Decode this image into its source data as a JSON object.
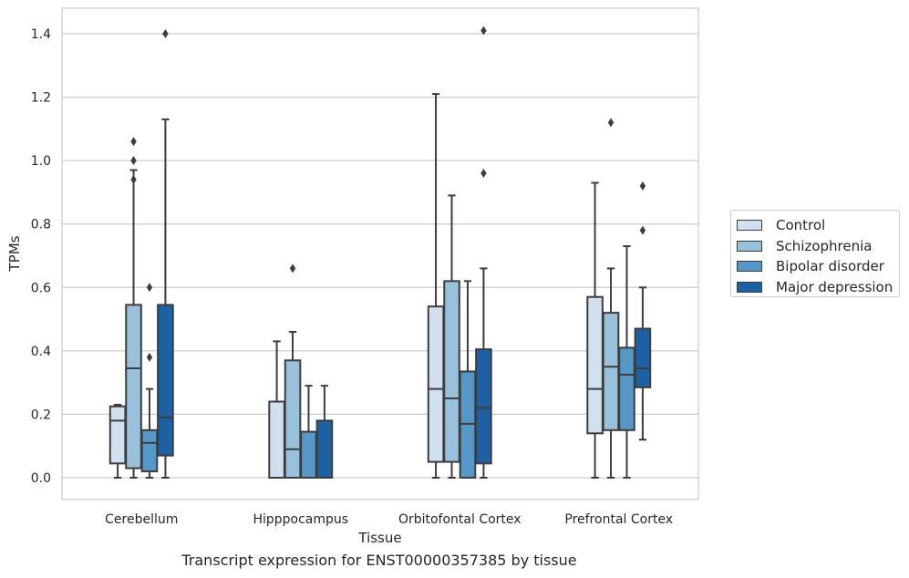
{
  "caption": "Transcript expression for ENST00000357385 by tissue",
  "chart_data": {
    "type": "boxplot",
    "xlabel": "Tissue",
    "ylabel": "TPMs",
    "ylim": [
      -0.07,
      1.48
    ],
    "yticks": [
      "0.0",
      "0.2",
      "0.4",
      "0.6",
      "0.8",
      "1.0",
      "1.2",
      "1.4"
    ],
    "grid": "horizontal",
    "legend_position": "right",
    "categories": [
      "Cerebellum",
      "Hipppocampus",
      "Orbitofontal Cortex",
      "Prefrontal Cortex"
    ],
    "series": [
      {
        "name": "Control",
        "color": "#d0e0ef",
        "boxes": [
          {
            "whisker_low": 0.0,
            "q1": 0.045,
            "median": 0.18,
            "q3": 0.225,
            "whisker_high": 0.23,
            "outliers": []
          },
          {
            "whisker_low": 0.0,
            "q1": 0.0,
            "median": 0.0,
            "q3": 0.24,
            "whisker_high": 0.43,
            "outliers": []
          },
          {
            "whisker_low": 0.0,
            "q1": 0.05,
            "median": 0.28,
            "q3": 0.54,
            "whisker_high": 1.21,
            "outliers": []
          },
          {
            "whisker_low": 0.0,
            "q1": 0.14,
            "median": 0.28,
            "q3": 0.57,
            "whisker_high": 0.93,
            "outliers": []
          }
        ]
      },
      {
        "name": "Schizophrenia",
        "color": "#99c1dc",
        "boxes": [
          {
            "whisker_low": 0.0,
            "q1": 0.03,
            "median": 0.345,
            "q3": 0.545,
            "whisker_high": 0.97,
            "outliers": [
              0.94,
              1.0,
              1.06
            ]
          },
          {
            "whisker_low": 0.0,
            "q1": 0.0,
            "median": 0.09,
            "q3": 0.37,
            "whisker_high": 0.46,
            "outliers": [
              0.66
            ]
          },
          {
            "whisker_low": 0.0,
            "q1": 0.05,
            "median": 0.25,
            "q3": 0.62,
            "whisker_high": 0.89,
            "outliers": []
          },
          {
            "whisker_low": 0.0,
            "q1": 0.15,
            "median": 0.35,
            "q3": 0.52,
            "whisker_high": 0.66,
            "outliers": [
              1.12
            ]
          }
        ]
      },
      {
        "name": "Bipolar disorder",
        "color": "#5597c7",
        "boxes": [
          {
            "whisker_low": 0.0,
            "q1": 0.02,
            "median": 0.11,
            "q3": 0.15,
            "whisker_high": 0.28,
            "outliers": [
              0.38,
              0.6
            ]
          },
          {
            "whisker_low": 0.0,
            "q1": 0.0,
            "median": 0.0,
            "q3": 0.145,
            "whisker_high": 0.29,
            "outliers": []
          },
          {
            "whisker_low": 0.0,
            "q1": 0.0,
            "median": 0.17,
            "q3": 0.335,
            "whisker_high": 0.62,
            "outliers": []
          },
          {
            "whisker_low": 0.0,
            "q1": 0.15,
            "median": 0.325,
            "q3": 0.41,
            "whisker_high": 0.73,
            "outliers": []
          }
        ]
      },
      {
        "name": "Major depression",
        "color": "#1e60a4",
        "boxes": [
          {
            "whisker_low": 0.0,
            "q1": 0.07,
            "median": 0.19,
            "q3": 0.545,
            "whisker_high": 1.13,
            "outliers": [
              1.4
            ]
          },
          {
            "whisker_low": 0.0,
            "q1": 0.0,
            "median": 0.0,
            "q3": 0.18,
            "whisker_high": 0.29,
            "outliers": []
          },
          {
            "whisker_low": 0.0,
            "q1": 0.045,
            "median": 0.22,
            "q3": 0.405,
            "whisker_high": 0.66,
            "outliers": [
              0.96,
              1.41
            ]
          },
          {
            "whisker_low": 0.12,
            "q1": 0.285,
            "median": 0.345,
            "q3": 0.47,
            "whisker_high": 0.6,
            "outliers": [
              0.78,
              0.92
            ]
          }
        ]
      }
    ]
  }
}
